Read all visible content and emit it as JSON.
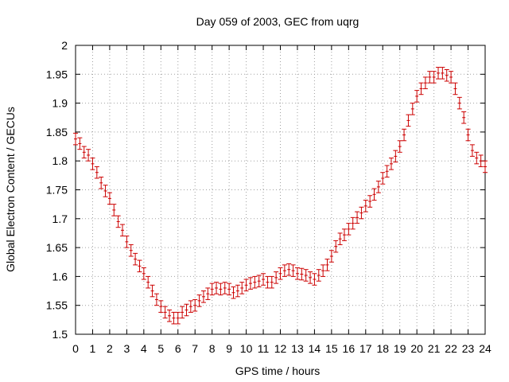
{
  "chart_data": {
    "type": "scatter",
    "title": "Day 059 of 2003, GEC from uqrg",
    "xlabel": "GPS time / hours",
    "ylabel": "Global Electron Content / GECUs",
    "xlim": [
      0,
      24
    ],
    "ylim": [
      1.5,
      2.0
    ],
    "x_ticks": [
      0,
      1,
      2,
      3,
      4,
      5,
      6,
      7,
      8,
      9,
      10,
      11,
      12,
      13,
      14,
      15,
      16,
      17,
      18,
      19,
      20,
      21,
      22,
      23,
      24
    ],
    "y_ticks": [
      "1.5",
      "1.55",
      "1.6",
      "1.65",
      "1.7",
      "1.75",
      "1.8",
      "1.85",
      "1.9",
      "1.95",
      "2"
    ],
    "grid": true,
    "error_bar": 0.01,
    "series": [
      {
        "color": "#cc0000",
        "x": [
          0.0,
          0.25,
          0.5,
          0.75,
          1.0,
          1.25,
          1.5,
          1.75,
          2.0,
          2.25,
          2.5,
          2.75,
          3.0,
          3.25,
          3.5,
          3.75,
          4.0,
          4.25,
          4.5,
          4.75,
          5.0,
          5.25,
          5.5,
          5.75,
          6.0,
          6.25,
          6.5,
          6.75,
          7.0,
          7.25,
          7.5,
          7.75,
          8.0,
          8.25,
          8.5,
          8.75,
          9.0,
          9.25,
          9.5,
          9.75,
          10.0,
          10.25,
          10.5,
          10.75,
          11.0,
          11.25,
          11.5,
          11.75,
          12.0,
          12.25,
          12.5,
          12.75,
          13.0,
          13.25,
          13.5,
          13.75,
          14.0,
          14.25,
          14.5,
          14.75,
          15.0,
          15.25,
          15.5,
          15.75,
          16.0,
          16.25,
          16.5,
          16.75,
          17.0,
          17.25,
          17.5,
          17.75,
          18.0,
          18.25,
          18.5,
          18.75,
          19.0,
          19.25,
          19.5,
          19.75,
          20.0,
          20.25,
          20.5,
          20.75,
          21.0,
          21.25,
          21.5,
          21.75,
          22.0,
          22.25,
          22.5,
          22.75,
          23.0,
          23.25,
          23.5,
          23.75,
          24.0
        ],
        "y": [
          1.838,
          1.83,
          1.815,
          1.81,
          1.795,
          1.78,
          1.762,
          1.748,
          1.735,
          1.715,
          1.695,
          1.68,
          1.66,
          1.645,
          1.63,
          1.618,
          1.605,
          1.59,
          1.575,
          1.56,
          1.548,
          1.538,
          1.532,
          1.528,
          1.528,
          1.538,
          1.542,
          1.548,
          1.55,
          1.558,
          1.565,
          1.57,
          1.578,
          1.58,
          1.578,
          1.58,
          1.578,
          1.572,
          1.575,
          1.58,
          1.585,
          1.588,
          1.59,
          1.592,
          1.595,
          1.59,
          1.59,
          1.598,
          1.605,
          1.61,
          1.612,
          1.61,
          1.605,
          1.604,
          1.602,
          1.598,
          1.595,
          1.602,
          1.61,
          1.62,
          1.635,
          1.652,
          1.665,
          1.672,
          1.682,
          1.692,
          1.702,
          1.71,
          1.722,
          1.73,
          1.742,
          1.755,
          1.77,
          1.782,
          1.795,
          1.808,
          1.825,
          1.845,
          1.87,
          1.89,
          1.912,
          1.925,
          1.935,
          1.945,
          1.945,
          1.952,
          1.952,
          1.948,
          1.945,
          1.925,
          1.9,
          1.875,
          1.845,
          1.818,
          1.805,
          1.8,
          1.79
        ]
      }
    ]
  }
}
